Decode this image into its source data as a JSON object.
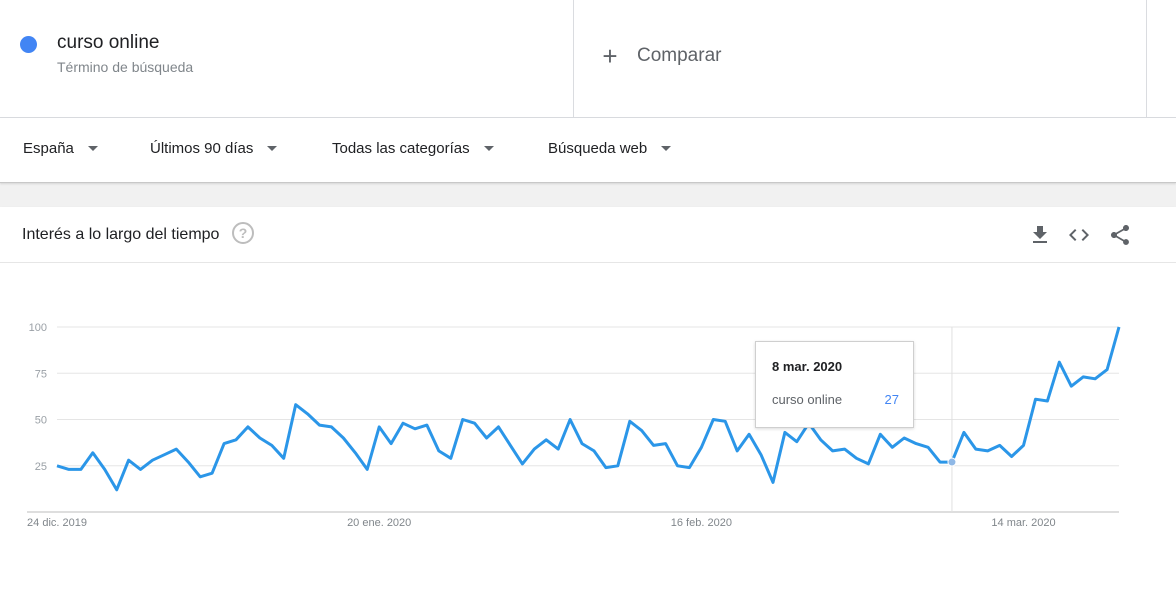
{
  "search_term": {
    "name": "curso online",
    "subtitle": "Término de búsqueda",
    "color": "#4285f4"
  },
  "compare": {
    "label": "Comparar"
  },
  "filters": [
    {
      "label": "España"
    },
    {
      "label": "Últimos 90 días"
    },
    {
      "label": "Todas las categorías"
    },
    {
      "label": "Búsqueda web"
    }
  ],
  "card": {
    "title": "Interés a lo largo del tiempo",
    "icons": [
      "help-icon",
      "download-icon",
      "embed-code-icon",
      "share-icon"
    ]
  },
  "tooltip": {
    "date": "8 mar. 2020",
    "term": "curso online",
    "value": "27"
  },
  "chart_data": {
    "type": "line",
    "y_ticks": [
      "100",
      "75",
      "50",
      "25"
    ],
    "ylim": [
      0,
      100
    ],
    "x_tick_labels": [
      {
        "label": "24 dic. 2019",
        "index": 0
      },
      {
        "label": "20 ene. 2020",
        "index": 27
      },
      {
        "label": "16 feb. 2020",
        "index": 54
      },
      {
        "label": "14 mar. 2020",
        "index": 81
      }
    ],
    "highlight_index": 75,
    "line_color": "#2b96e8",
    "grid": true,
    "series": [
      {
        "name": "curso online",
        "values": [
          25,
          23,
          23,
          32,
          23,
          12,
          28,
          23,
          28,
          31,
          34,
          27,
          19,
          21,
          37,
          39,
          46,
          40,
          36,
          29,
          58,
          53,
          47,
          46,
          40,
          32,
          23,
          46,
          37,
          48,
          45,
          47,
          33,
          29,
          50,
          48,
          40,
          46,
          36,
          26,
          34,
          39,
          34,
          50,
          37,
          33,
          24,
          25,
          49,
          44,
          36,
          37,
          25,
          24,
          35,
          50,
          49,
          33,
          42,
          31,
          16,
          43,
          38,
          48,
          39,
          33,
          34,
          29,
          26,
          42,
          35,
          40,
          37,
          35,
          27,
          27,
          43,
          34,
          33,
          36,
          30,
          36,
          61,
          60,
          81,
          68,
          73,
          72,
          77,
          100
        ]
      }
    ]
  }
}
